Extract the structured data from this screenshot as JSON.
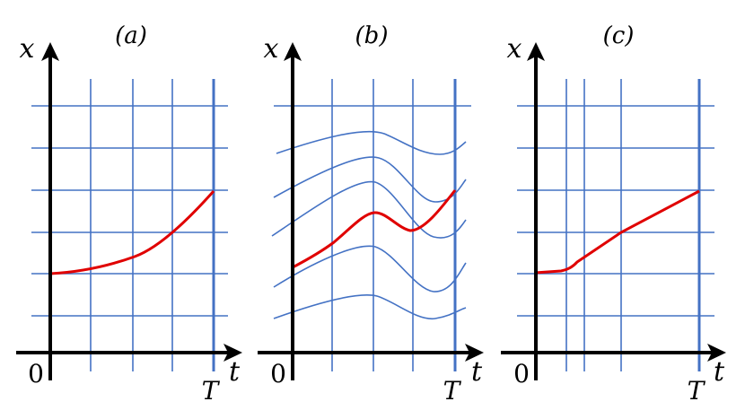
{
  "panels": [
    {
      "label": "(a)",
      "x_axis": "t",
      "y_axis": "x",
      "origin": "0",
      "end_tick": "T"
    },
    {
      "label": "(b)",
      "x_axis": "t",
      "y_axis": "x",
      "origin": "0",
      "end_tick": "T"
    },
    {
      "label": "(c)",
      "x_axis": "t",
      "y_axis": "x",
      "origin": "0",
      "end_tick": "T"
    }
  ],
  "colors": {
    "grid": "#4472c4",
    "trajectory": "#e00000",
    "axis": "#000000"
  }
}
